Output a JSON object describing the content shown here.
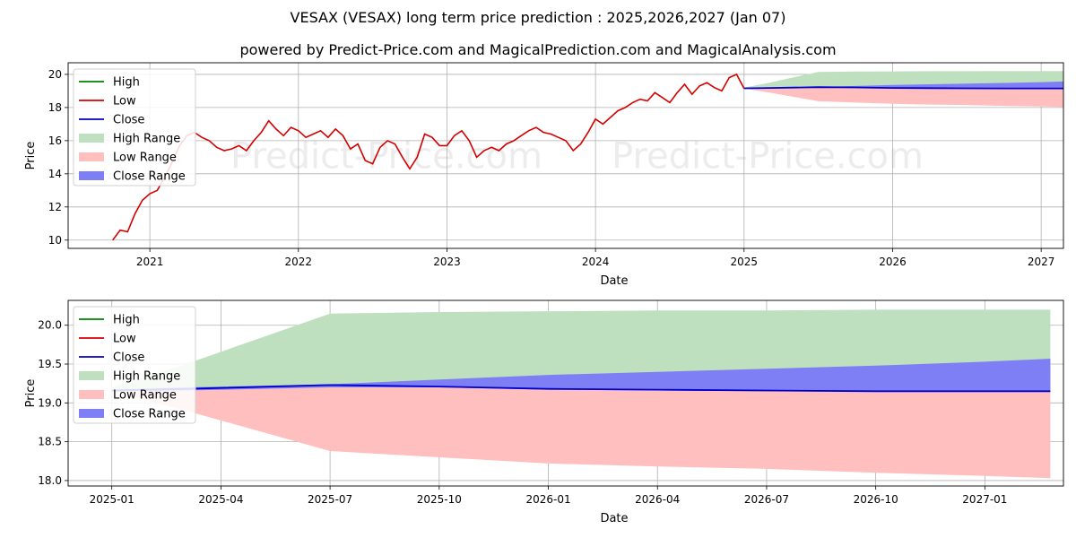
{
  "title": "VESAX (VESAX) long term price prediction : 2025,2026,2027 (Jan 07)",
  "subtitle": "powered by Predict-Price.com and MagicalPrediction.com and MagicalAnalysis.com",
  "watermark": "Predict-Price.com",
  "colors": {
    "high": "#008000",
    "low": "#d40000",
    "close": "#0000cc",
    "high_range": "#bfe0bf",
    "low_range": "#ffbfbf",
    "close_range": "#7f7ff5"
  },
  "chart_data": [
    {
      "type": "line",
      "xlabel": "Date",
      "ylabel": "Price",
      "x_ticks": [
        "2021",
        "2022",
        "2023",
        "2024",
        "2025",
        "2026",
        "2027"
      ],
      "y_ticks": [
        "10",
        "12",
        "14",
        "16",
        "18",
        "20"
      ],
      "xlim": [
        2020.45,
        2027.15
      ],
      "ylim": [
        9.5,
        20.7
      ],
      "grid": true,
      "legend_position": "top-left",
      "legend": [
        "High",
        "Low",
        "Close",
        "High Range",
        "Low Range",
        "Close Range"
      ],
      "history": {
        "name": "Low",
        "x": [
          2020.75,
          2020.8,
          2020.85,
          2020.9,
          2020.95,
          2021.0,
          2021.05,
          2021.1,
          2021.15,
          2021.2,
          2021.25,
          2021.3,
          2021.35,
          2021.4,
          2021.45,
          2021.5,
          2021.55,
          2021.6,
          2021.65,
          2021.7,
          2021.75,
          2021.8,
          2021.85,
          2021.9,
          2021.95,
          2022.0,
          2022.05,
          2022.1,
          2022.15,
          2022.2,
          2022.25,
          2022.3,
          2022.35,
          2022.4,
          2022.45,
          2022.5,
          2022.55,
          2022.6,
          2022.65,
          2022.7,
          2022.75,
          2022.8,
          2022.85,
          2022.9,
          2022.95,
          2023.0,
          2023.05,
          2023.1,
          2023.15,
          2023.2,
          2023.25,
          2023.3,
          2023.35,
          2023.4,
          2023.45,
          2023.5,
          2023.55,
          2023.6,
          2023.65,
          2023.7,
          2023.75,
          2023.8,
          2023.85,
          2023.9,
          2023.95,
          2024.0,
          2024.05,
          2024.1,
          2024.15,
          2024.2,
          2024.25,
          2024.3,
          2024.35,
          2024.4,
          2024.45,
          2024.5,
          2024.55,
          2024.6,
          2024.65,
          2024.7,
          2024.75,
          2024.8,
          2024.85,
          2024.9,
          2024.95,
          2025.0
        ],
        "y": [
          10.0,
          10.6,
          10.5,
          11.6,
          12.4,
          12.8,
          13.0,
          13.8,
          14.7,
          15.7,
          16.3,
          16.5,
          16.2,
          16.0,
          15.6,
          15.4,
          15.5,
          15.7,
          15.4,
          16.0,
          16.5,
          17.2,
          16.7,
          16.3,
          16.8,
          16.6,
          16.2,
          16.4,
          16.6,
          16.2,
          16.7,
          16.3,
          15.5,
          15.8,
          14.8,
          14.6,
          15.6,
          16.0,
          15.8,
          15.0,
          14.3,
          15.0,
          16.4,
          16.2,
          15.7,
          15.7,
          16.3,
          16.6,
          16.0,
          15.0,
          15.4,
          15.6,
          15.4,
          15.8,
          16.0,
          16.3,
          16.6,
          16.8,
          16.5,
          16.4,
          16.2,
          16.0,
          15.4,
          15.8,
          16.5,
          17.3,
          17.0,
          17.4,
          17.8,
          18.0,
          18.3,
          18.5,
          18.4,
          18.9,
          18.6,
          18.3,
          18.9,
          19.4,
          18.8,
          19.3,
          19.5,
          19.2,
          19.0,
          19.8,
          20.0,
          19.15
        ]
      },
      "forecast": {
        "x": [
          2025.0,
          2025.17,
          2025.5,
          2025.75,
          2026.0,
          2026.25,
          2026.5,
          2026.75,
          2027.0,
          2027.15
        ],
        "high_range": [
          19.2,
          19.5,
          20.15,
          20.17,
          20.18,
          20.19,
          20.19,
          20.2,
          20.2,
          20.2
        ],
        "low_range": [
          19.15,
          18.9,
          18.38,
          18.3,
          18.22,
          18.18,
          18.15,
          18.1,
          18.06,
          18.03
        ],
        "close_range_low": [
          19.15,
          19.16,
          19.2,
          19.2,
          19.17,
          19.16,
          19.15,
          19.15,
          19.15,
          19.15
        ],
        "close_range_high": [
          19.17,
          19.2,
          19.24,
          19.3,
          19.36,
          19.4,
          19.44,
          19.48,
          19.53,
          19.57
        ],
        "close": [
          19.16,
          19.18,
          19.23,
          19.21,
          19.18,
          19.17,
          19.16,
          19.15,
          19.15,
          19.15
        ]
      }
    },
    {
      "type": "line",
      "xlabel": "Date",
      "ylabel": "Price",
      "x_ticks": [
        "2025-01",
        "2025-04",
        "2025-07",
        "2025-10",
        "2026-01",
        "2026-04",
        "2026-07",
        "2026-10",
        "2027-01"
      ],
      "y_ticks": [
        "18.0",
        "18.5",
        "19.0",
        "19.5",
        "20.0"
      ],
      "xlim": [
        2024.9,
        2027.18
      ],
      "ylim": [
        17.93,
        20.32
      ],
      "grid": true,
      "legend_position": "top-left",
      "legend": [
        "High",
        "Low",
        "Close",
        "High Range",
        "Low Range",
        "Close Range"
      ]
    }
  ]
}
